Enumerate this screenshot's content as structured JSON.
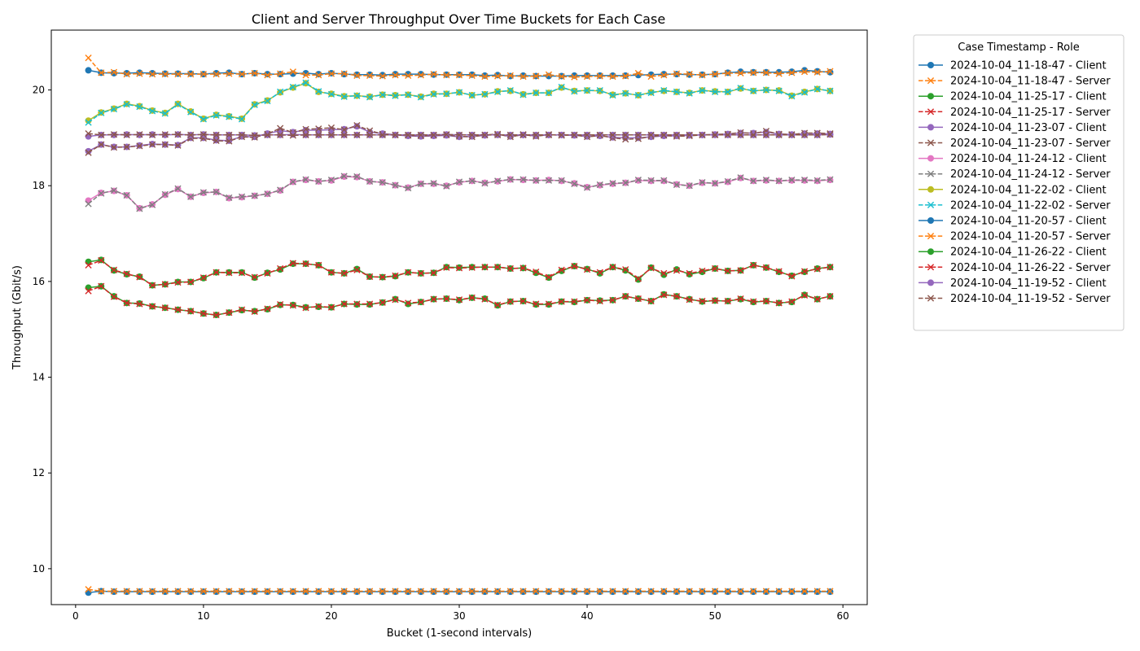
{
  "chart_data": {
    "type": "line",
    "title": "Client and Server Throughput Over Time Buckets for Each Case",
    "xlabel": "Bucket (1-second intervals)",
    "ylabel": "Throughput (Gbit/s)",
    "xlim": [
      -1.9,
      61.9
    ],
    "ylim": [
      9.25,
      21.25
    ],
    "xticks": [
      0,
      10,
      20,
      30,
      40,
      50,
      60
    ],
    "yticks": [
      10,
      12,
      14,
      16,
      18,
      20
    ],
    "grid": false,
    "legend": {
      "title": "Case Timestamp - Role",
      "placement": "outside-top-right"
    },
    "x": [
      1,
      2,
      3,
      4,
      5,
      6,
      7,
      8,
      9,
      10,
      11,
      12,
      13,
      14,
      15,
      16,
      17,
      18,
      19,
      20,
      21,
      22,
      23,
      24,
      25,
      26,
      27,
      28,
      29,
      30,
      31,
      32,
      33,
      34,
      35,
      36,
      37,
      38,
      39,
      40,
      41,
      42,
      43,
      44,
      45,
      46,
      47,
      48,
      49,
      50,
      51,
      52,
      53,
      54,
      55,
      56,
      57,
      58,
      59
    ],
    "series": [
      {
        "name": "2024-10-04_11-18-47 - Client",
        "color": "#1f77b4",
        "marker": "circle",
        "linestyle": "solid",
        "values": [
          20.41,
          20.36,
          20.35,
          20.35,
          20.36,
          20.35,
          20.34,
          20.34,
          20.34,
          20.33,
          20.35,
          20.36,
          20.33,
          20.35,
          20.33,
          20.33,
          20.34,
          20.35,
          20.33,
          20.35,
          20.33,
          20.32,
          20.32,
          20.31,
          20.33,
          20.33,
          20.33,
          20.32,
          20.32,
          20.32,
          20.32,
          20.3,
          20.31,
          20.29,
          20.3,
          20.29,
          20.29,
          20.29,
          20.3,
          20.3,
          20.3,
          20.3,
          20.3,
          20.31,
          20.32,
          20.33,
          20.33,
          20.32,
          20.32,
          20.33,
          20.36,
          20.38,
          20.37,
          20.37,
          20.37,
          20.38,
          20.41,
          20.39,
          20.37
        ]
      },
      {
        "name": "2024-10-04_11-18-47 - Server",
        "color": "#ff7f0e",
        "marker": "x",
        "linestyle": "dashed",
        "values": [
          20.67,
          20.36,
          20.37,
          20.33,
          20.34,
          20.33,
          20.33,
          20.33,
          20.33,
          20.33,
          20.33,
          20.34,
          20.33,
          20.35,
          20.31,
          20.34,
          20.38,
          20.31,
          20.31,
          20.34,
          20.34,
          20.3,
          20.3,
          20.29,
          20.31,
          20.3,
          20.31,
          20.33,
          20.31,
          20.31,
          20.3,
          20.28,
          20.29,
          20.3,
          20.28,
          20.29,
          20.32,
          20.28,
          20.27,
          20.28,
          20.29,
          20.28,
          20.29,
          20.35,
          20.28,
          20.31,
          20.34,
          20.33,
          20.31,
          20.33,
          20.35,
          20.35,
          20.36,
          20.36,
          20.34,
          20.36,
          20.38,
          20.37,
          20.39
        ]
      },
      {
        "name": "2024-10-04_11-25-17 - Client",
        "color": "#2ca02c",
        "marker": "circle",
        "linestyle": "solid",
        "values": [
          16.41,
          16.45,
          16.23,
          16.15,
          16.1,
          15.92,
          15.94,
          15.99,
          15.99,
          16.07,
          16.19,
          16.19,
          16.19,
          16.08,
          16.18,
          16.25,
          16.37,
          16.37,
          16.34,
          16.19,
          16.17,
          16.26,
          16.1,
          16.09,
          16.11,
          16.19,
          16.17,
          16.18,
          16.3,
          16.29,
          16.3,
          16.3,
          16.3,
          16.27,
          16.28,
          16.18,
          16.08,
          16.22,
          16.32,
          16.26,
          16.17,
          16.3,
          16.23,
          16.04,
          16.29,
          16.14,
          16.25,
          16.15,
          16.2,
          16.27,
          16.22,
          16.23,
          16.34,
          16.29,
          16.2,
          16.12,
          16.2,
          16.27,
          16.3
        ]
      },
      {
        "name": "2024-10-04_11-25-17 - Server",
        "color": "#d62728",
        "marker": "x",
        "linestyle": "dashed",
        "values": [
          16.34,
          16.44,
          16.24,
          16.16,
          16.09,
          15.92,
          15.94,
          15.98,
          15.99,
          16.08,
          16.19,
          16.18,
          16.18,
          16.09,
          16.17,
          16.27,
          16.38,
          16.37,
          16.34,
          16.19,
          16.17,
          16.24,
          16.1,
          16.09,
          16.12,
          16.19,
          16.17,
          16.18,
          16.29,
          16.28,
          16.29,
          16.3,
          16.3,
          16.27,
          16.28,
          16.2,
          16.09,
          16.24,
          16.32,
          16.25,
          16.19,
          16.3,
          16.25,
          16.06,
          16.28,
          16.17,
          16.23,
          16.17,
          16.22,
          16.27,
          16.22,
          16.23,
          16.34,
          16.29,
          16.21,
          16.11,
          16.21,
          16.26,
          16.3
        ]
      },
      {
        "name": "2024-10-04_11-23-07 - Client",
        "color": "#9467bd",
        "marker": "circle",
        "linestyle": "solid",
        "values": [
          18.72,
          18.86,
          18.81,
          18.81,
          18.84,
          18.87,
          18.86,
          18.85,
          19.0,
          19.0,
          18.95,
          18.94,
          19.03,
          19.02,
          19.09,
          19.15,
          19.12,
          19.16,
          19.16,
          19.17,
          19.18,
          19.24,
          19.12,
          19.09,
          19.06,
          19.04,
          19.03,
          19.04,
          19.05,
          19.02,
          19.03,
          19.05,
          19.07,
          19.03,
          19.06,
          19.04,
          19.06,
          19.06,
          19.05,
          19.03,
          19.04,
          19.01,
          19.0,
          19.0,
          19.02,
          19.04,
          19.04,
          19.05,
          19.06,
          19.07,
          19.08,
          19.1,
          19.1,
          19.12,
          19.08,
          19.07,
          19.09,
          19.09,
          19.08
        ]
      },
      {
        "name": "2024-10-04_11-23-07 - Server",
        "color": "#8c564b",
        "marker": "x",
        "linestyle": "dashed",
        "values": [
          18.69,
          18.86,
          18.8,
          18.81,
          18.83,
          18.86,
          18.86,
          18.84,
          18.99,
          18.99,
          18.94,
          18.93,
          19.02,
          19.01,
          19.08,
          19.2,
          19.11,
          19.18,
          19.19,
          19.21,
          19.17,
          19.26,
          19.15,
          19.08,
          19.06,
          19.05,
          19.04,
          19.05,
          19.06,
          19.03,
          19.02,
          19.06,
          19.08,
          19.02,
          19.07,
          19.03,
          19.07,
          19.05,
          19.06,
          19.02,
          19.05,
          19.0,
          18.97,
          18.98,
          19.03,
          19.05,
          19.03,
          19.04,
          19.06,
          19.07,
          19.08,
          19.11,
          19.09,
          19.14,
          19.08,
          19.07,
          19.1,
          19.1,
          19.09
        ]
      },
      {
        "name": "2024-10-04_11-24-12 - Client",
        "color": "#e377c2",
        "marker": "circle",
        "linestyle": "solid",
        "values": [
          17.69,
          17.85,
          17.89,
          17.8,
          17.53,
          17.61,
          17.81,
          17.93,
          17.77,
          17.85,
          17.87,
          17.74,
          17.76,
          17.79,
          17.83,
          17.9,
          18.08,
          18.12,
          18.09,
          18.11,
          18.19,
          18.18,
          18.09,
          18.07,
          18.01,
          17.96,
          18.04,
          18.04,
          18.0,
          18.07,
          18.1,
          18.06,
          18.09,
          18.13,
          18.12,
          18.11,
          18.12,
          18.1,
          18.05,
          17.97,
          18.01,
          18.04,
          18.06,
          18.11,
          18.1,
          18.1,
          18.03,
          18.0,
          18.06,
          18.05,
          18.08,
          18.16,
          18.1,
          18.11,
          18.1,
          18.11,
          18.11,
          18.1,
          18.12
        ]
      },
      {
        "name": "2024-10-04_11-24-12 - Server",
        "color": "#7f7f7f",
        "marker": "x",
        "linestyle": "dashed",
        "values": [
          17.62,
          17.84,
          17.9,
          17.8,
          17.52,
          17.6,
          17.82,
          17.94,
          17.77,
          17.86,
          17.87,
          17.75,
          17.77,
          17.79,
          17.83,
          17.91,
          18.08,
          18.13,
          18.09,
          18.12,
          18.2,
          18.19,
          18.09,
          18.07,
          18.01,
          17.95,
          18.04,
          18.05,
          17.99,
          18.08,
          18.1,
          18.05,
          18.1,
          18.13,
          18.13,
          18.11,
          18.11,
          18.11,
          18.04,
          17.96,
          18.02,
          18.05,
          18.06,
          18.12,
          18.11,
          18.11,
          18.02,
          18.0,
          18.07,
          18.05,
          18.09,
          18.17,
          18.1,
          18.12,
          18.1,
          18.12,
          18.12,
          18.11,
          18.13
        ]
      },
      {
        "name": "2024-10-04_11-22-02 - Client",
        "color": "#bcbd22",
        "marker": "circle",
        "linestyle": "solid",
        "values": [
          19.36,
          19.53,
          19.61,
          19.71,
          19.66,
          19.57,
          19.52,
          19.71,
          19.55,
          19.4,
          19.48,
          19.45,
          19.4,
          19.7,
          19.78,
          19.95,
          20.05,
          20.14,
          19.96,
          19.92,
          19.87,
          19.88,
          19.86,
          19.9,
          19.89,
          19.9,
          19.86,
          19.92,
          19.92,
          19.95,
          19.89,
          19.91,
          19.97,
          19.98,
          19.91,
          19.94,
          19.94,
          20.05,
          19.98,
          19.99,
          19.98,
          19.9,
          19.93,
          19.89,
          19.95,
          19.98,
          19.96,
          19.94,
          19.99,
          19.97,
          19.96,
          20.03,
          19.98,
          20.0,
          19.99,
          19.88,
          19.96,
          20.02,
          19.98
        ]
      },
      {
        "name": "2024-10-04_11-22-02 - Server",
        "color": "#17becf",
        "marker": "x",
        "linestyle": "dashed",
        "values": [
          19.32,
          19.52,
          19.6,
          19.7,
          19.65,
          19.56,
          19.51,
          19.7,
          19.54,
          19.39,
          19.47,
          19.44,
          19.39,
          19.69,
          19.77,
          19.96,
          20.06,
          20.15,
          19.97,
          19.91,
          19.86,
          19.88,
          19.85,
          19.9,
          19.88,
          19.9,
          19.85,
          19.91,
          19.92,
          19.95,
          19.89,
          19.91,
          19.96,
          19.99,
          19.9,
          19.94,
          19.94,
          20.06,
          19.97,
          19.99,
          19.99,
          19.89,
          19.93,
          19.89,
          19.94,
          19.99,
          19.96,
          19.93,
          19.99,
          19.96,
          19.96,
          20.04,
          19.98,
          20.0,
          19.98,
          19.87,
          19.95,
          20.02,
          19.98
        ]
      },
      {
        "name": "2024-10-04_11-20-57 - Client",
        "color": "#1f77b4",
        "marker": "circle",
        "linestyle": "solid",
        "values": [
          9.5,
          9.53,
          9.52,
          9.52,
          9.52,
          9.52,
          9.52,
          9.52,
          9.52,
          9.52,
          9.52,
          9.52,
          9.52,
          9.52,
          9.52,
          9.52,
          9.52,
          9.52,
          9.52,
          9.52,
          9.52,
          9.52,
          9.52,
          9.52,
          9.52,
          9.52,
          9.52,
          9.52,
          9.52,
          9.52,
          9.52,
          9.52,
          9.52,
          9.52,
          9.52,
          9.52,
          9.52,
          9.52,
          9.52,
          9.52,
          9.52,
          9.52,
          9.52,
          9.52,
          9.52,
          9.52,
          9.52,
          9.52,
          9.52,
          9.52,
          9.52,
          9.52,
          9.52,
          9.52,
          9.52,
          9.52,
          9.52,
          9.52,
          9.52
        ]
      },
      {
        "name": "2024-10-04_11-20-57 - Server",
        "color": "#ff7f0e",
        "marker": "x",
        "linestyle": "dashed",
        "values": [
          9.57,
          9.53,
          9.53,
          9.53,
          9.53,
          9.53,
          9.53,
          9.53,
          9.53,
          9.53,
          9.53,
          9.53,
          9.53,
          9.53,
          9.53,
          9.53,
          9.53,
          9.53,
          9.53,
          9.53,
          9.53,
          9.53,
          9.53,
          9.53,
          9.53,
          9.53,
          9.53,
          9.53,
          9.53,
          9.53,
          9.53,
          9.53,
          9.53,
          9.53,
          9.53,
          9.53,
          9.53,
          9.53,
          9.53,
          9.53,
          9.53,
          9.53,
          9.53,
          9.53,
          9.53,
          9.53,
          9.53,
          9.53,
          9.53,
          9.53,
          9.53,
          9.53,
          9.53,
          9.53,
          9.53,
          9.53,
          9.53,
          9.53,
          9.53
        ]
      },
      {
        "name": "2024-10-04_11-26-22 - Client",
        "color": "#2ca02c",
        "marker": "circle",
        "linestyle": "solid",
        "values": [
          15.87,
          15.9,
          15.69,
          15.55,
          15.54,
          15.48,
          15.45,
          15.41,
          15.38,
          15.33,
          15.3,
          15.35,
          15.4,
          15.38,
          15.42,
          15.51,
          15.51,
          15.46,
          15.47,
          15.46,
          15.53,
          15.52,
          15.52,
          15.56,
          15.63,
          15.53,
          15.57,
          15.63,
          15.64,
          15.61,
          15.66,
          15.64,
          15.5,
          15.58,
          15.59,
          15.52,
          15.52,
          15.58,
          15.57,
          15.61,
          15.6,
          15.61,
          15.69,
          15.64,
          15.59,
          15.73,
          15.69,
          15.63,
          15.58,
          15.6,
          15.59,
          15.63,
          15.57,
          15.59,
          15.55,
          15.57,
          15.72,
          15.63,
          15.69
        ]
      },
      {
        "name": "2024-10-04_11-26-22 - Server",
        "color": "#d62728",
        "marker": "x",
        "linestyle": "dashed",
        "values": [
          15.8,
          15.9,
          15.68,
          15.55,
          15.53,
          15.48,
          15.45,
          15.41,
          15.38,
          15.33,
          15.3,
          15.35,
          15.41,
          15.37,
          15.43,
          15.52,
          15.5,
          15.45,
          15.48,
          15.46,
          15.53,
          15.53,
          15.53,
          15.56,
          15.62,
          15.55,
          15.57,
          15.63,
          15.64,
          15.62,
          15.66,
          15.63,
          15.51,
          15.58,
          15.59,
          15.53,
          15.53,
          15.58,
          15.58,
          15.61,
          15.59,
          15.61,
          15.69,
          15.64,
          15.59,
          15.72,
          15.69,
          15.62,
          15.59,
          15.6,
          15.59,
          15.64,
          15.58,
          15.59,
          15.55,
          15.58,
          15.71,
          15.63,
          15.69
        ]
      },
      {
        "name": "2024-10-04_11-19-52 - Client",
        "color": "#9467bd",
        "marker": "circle",
        "linestyle": "solid",
        "values": [
          19.03,
          19.06,
          19.06,
          19.07,
          19.06,
          19.07,
          19.06,
          19.07,
          19.06,
          19.07,
          19.06,
          19.06,
          19.06,
          19.05,
          19.06,
          19.06,
          19.07,
          19.06,
          19.06,
          19.06,
          19.06,
          19.06,
          19.06,
          19.06,
          19.06,
          19.06,
          19.06,
          19.06,
          19.07,
          19.06,
          19.06,
          19.06,
          19.06,
          19.06,
          19.06,
          19.06,
          19.06,
          19.06,
          19.06,
          19.06,
          19.06,
          19.06,
          19.06,
          19.06,
          19.06,
          19.06,
          19.06,
          19.06,
          19.06,
          19.06,
          19.06,
          19.06,
          19.06,
          19.06,
          19.06,
          19.06,
          19.06,
          19.06,
          19.07
        ]
      },
      {
        "name": "2024-10-04_11-19-52 - Server",
        "color": "#8c564b",
        "marker": "x",
        "linestyle": "dashed",
        "values": [
          19.09,
          19.06,
          19.07,
          19.06,
          19.07,
          19.06,
          19.07,
          19.07,
          19.06,
          19.07,
          19.06,
          19.06,
          19.06,
          19.05,
          19.06,
          19.06,
          19.05,
          19.06,
          19.06,
          19.06,
          19.06,
          19.06,
          19.06,
          19.06,
          19.06,
          19.06,
          19.06,
          19.06,
          19.07,
          19.06,
          19.06,
          19.06,
          19.06,
          19.06,
          19.06,
          19.06,
          19.06,
          19.06,
          19.06,
          19.06,
          19.06,
          19.06,
          19.06,
          19.06,
          19.06,
          19.06,
          19.06,
          19.06,
          19.06,
          19.06,
          19.06,
          19.06,
          19.06,
          19.06,
          19.06,
          19.06,
          19.06,
          19.06,
          19.07
        ]
      }
    ]
  }
}
